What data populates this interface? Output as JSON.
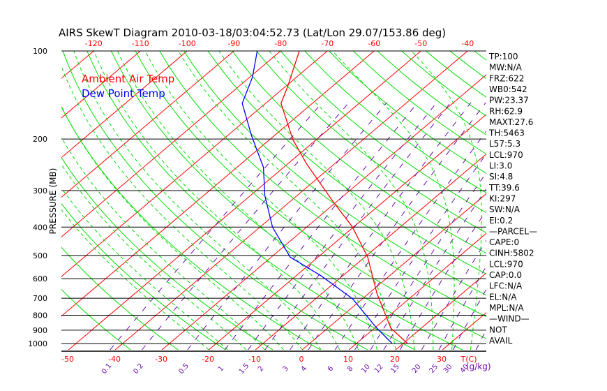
{
  "chart_data": {
    "type": "line",
    "title": "AIRS SkewT Diagram 2010-03-18/03:04:52.73 (Lat/Lon 29.07/153.86 deg)",
    "ylabel": "PRESSURE (MB)",
    "xlabel": "T(C)",
    "mixing_ratio_unit": "(g/kg)",
    "pressure_ticks": [
      100,
      200,
      300,
      400,
      500,
      600,
      700,
      800,
      900,
      1000
    ],
    "top_temp_ticks": [
      -120,
      -110,
      -100,
      -90,
      -80,
      -70,
      -60,
      -50,
      -40
    ],
    "bottom_temp_ticks": [
      -50,
      -40,
      -30,
      -20,
      -10,
      0,
      10,
      20,
      30
    ],
    "mixing_ratio_ticks": [
      0.1,
      0.2,
      0.5,
      1,
      1.5,
      2,
      3,
      4,
      6,
      8,
      10,
      12,
      15,
      20,
      25,
      30,
      40
    ],
    "ylim": [
      1050,
      100
    ],
    "xlim_at_1000": [
      -51,
      39
    ],
    "legend": [
      {
        "label": "Ambient Air Temp",
        "color": "#ff0000"
      },
      {
        "label": "Dew Point Temp",
        "color": "#0000ff"
      }
    ],
    "series": [
      {
        "name": "Ambient Air Temp",
        "color": "#ff0000",
        "pressure": [
          997,
          886,
          673,
          506,
          399,
          329,
          244,
          201,
          151,
          133,
          100
        ],
        "temp": [
          20.8,
          13.5,
          1.7,
          -9.4,
          -20.3,
          -30.5,
          -45.8,
          -55.0,
          -66.7,
          -69.4,
          -76.0
        ]
      },
      {
        "name": "Dew Point Temp",
        "color": "#0000ff",
        "pressure": [
          997,
          886,
          703,
          587,
          506,
          400,
          312,
          250,
          195,
          151,
          123,
          100
        ],
        "temp": [
          17.5,
          10.5,
          -2.1,
          -14.6,
          -26.0,
          -37.3,
          -46.9,
          -54.3,
          -64.8,
          -75.0,
          -79.4,
          -85.0
        ]
      }
    ],
    "indices": [
      "TP:100",
      "MW:N/A",
      "FRZ:622",
      "WB0:542",
      "PW:23.37",
      "RH:62.9",
      "MAXT:27.6",
      "TH:5463",
      "L57:5.3",
      "LCL:970",
      "LI:3.0",
      "SI:4.8",
      "TT:39.6",
      "KI:297",
      "SW:N/A",
      "EI:0.2",
      "—PARCEL—",
      "CAPE:0",
      "CINH:5802",
      "LCL:970",
      "CAP:0.0",
      "LFC:N/A",
      "EL:N/A",
      "MPL:N/A",
      "—WIND—",
      "NOT",
      "AVAIL"
    ],
    "colors": {
      "isotherm": "#ff0000",
      "dry_adiabat": "#00e000",
      "moist_adiabat": "#00e000",
      "mixing_ratio": "#6a0dad",
      "grid": "#000000"
    }
  }
}
